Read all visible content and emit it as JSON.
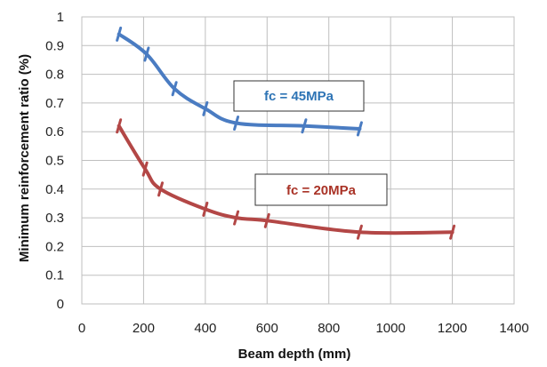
{
  "chart_data": {
    "type": "line",
    "xlabel": "Beam depth (mm)",
    "ylabel": "Minimum reinforcement ratio (%)",
    "xlim": [
      0,
      1400
    ],
    "ylim": [
      0,
      1
    ],
    "xticks": [
      "0",
      "200",
      "400",
      "600",
      "800",
      "1000",
      "1200",
      "1400"
    ],
    "yticks": [
      "0",
      "0.1",
      "0.2",
      "0.3",
      "0.4",
      "0.5",
      "0.6",
      "0.7",
      "0.8",
      "0.9",
      "1"
    ],
    "grid": true,
    "series": [
      {
        "name": "fc = 45MPa",
        "color": "#4a7cc2",
        "x": [
          120,
          210,
          300,
          400,
          500,
          720,
          900
        ],
        "y": [
          0.94,
          0.87,
          0.75,
          0.68,
          0.63,
          0.62,
          0.61
        ]
      },
      {
        "name": "fc = 20MPa",
        "color": "#b34746",
        "x": [
          120,
          205,
          255,
          400,
          500,
          600,
          900,
          1200
        ],
        "y": [
          0.62,
          0.47,
          0.4,
          0.33,
          0.3,
          0.29,
          0.25,
          0.25
        ]
      }
    ],
    "annotations": [
      {
        "text": "fc = 45MPa",
        "color": "#2e74b5"
      },
      {
        "text": "fc = 20MPa",
        "color": "#a93226"
      }
    ]
  }
}
